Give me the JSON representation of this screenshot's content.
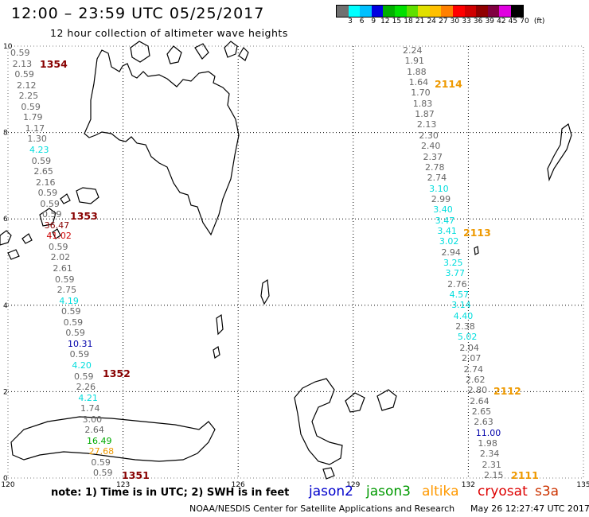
{
  "header": {
    "title": "12:00 – 23:59 UTC 05/25/2017",
    "subtitle": "12 hour collection of altimeter wave heights"
  },
  "colorbar": {
    "colors": [
      "#707070",
      "#00ffff",
      "#00c0ff",
      "#0000e0",
      "#00b000",
      "#00e000",
      "#60e000",
      "#e0e000",
      "#ffc000",
      "#ff8000",
      "#ff0000",
      "#d00000",
      "#900000",
      "#800040",
      "#e000e0",
      "#000000"
    ],
    "labels": [
      "3",
      "6",
      "9",
      "12",
      "15",
      "18",
      "21",
      "24",
      "27",
      "30",
      "33",
      "36",
      "39",
      "42",
      "45",
      "70",
      "(ft)"
    ]
  },
  "axes": {
    "x_ticks": [
      "120",
      "123",
      "126",
      "129",
      "132",
      "135"
    ],
    "y_ticks": [
      "0",
      "2",
      "4",
      "6",
      "8",
      "10"
    ]
  },
  "colors": {
    "gray": "#666666",
    "cyan": "#00dddd",
    "blue": "#0000aa",
    "green": "#00aa00",
    "orange": "#ee9900",
    "darkred": "#880000",
    "red": "#cc0000",
    "grid": "#000000"
  },
  "passes": [
    {
      "label": "1354",
      "color": "darkred"
    },
    {
      "label": "1353",
      "color": "darkred"
    },
    {
      "label": "1352",
      "color": "darkred"
    },
    {
      "label": "1351",
      "color": "darkred"
    },
    {
      "label": "2114",
      "color": "orange"
    },
    {
      "label": "2113",
      "color": "orange"
    },
    {
      "label": "2112",
      "color": "orange"
    },
    {
      "label": "2111",
      "color": "orange"
    }
  ],
  "track_west": [
    {
      "v": "0.59",
      "c": "gray"
    },
    {
      "v": "2.13",
      "c": "gray"
    },
    {
      "v": "0.59",
      "c": "gray"
    },
    {
      "v": "2.12",
      "c": "gray"
    },
    {
      "v": "2.25",
      "c": "gray"
    },
    {
      "v": "0.59",
      "c": "gray"
    },
    {
      "v": "1.79",
      "c": "gray"
    },
    {
      "v": "1.17",
      "c": "gray"
    },
    {
      "v": "1.30",
      "c": "gray"
    },
    {
      "v": "4.23",
      "c": "cyan"
    },
    {
      "v": "0.59",
      "c": "gray"
    },
    {
      "v": "2.65",
      "c": "gray"
    },
    {
      "v": "2.16",
      "c": "gray"
    },
    {
      "v": "0.59",
      "c": "gray"
    },
    {
      "v": "0.59",
      "c": "gray"
    },
    {
      "v": "0.59",
      "c": "gray"
    },
    {
      "v": "36.47",
      "c": "darkred"
    },
    {
      "v": "41.02",
      "c": "red"
    },
    {
      "v": "0.59",
      "c": "gray"
    },
    {
      "v": "2.02",
      "c": "gray"
    },
    {
      "v": "2.61",
      "c": "gray"
    },
    {
      "v": "0.59",
      "c": "gray"
    },
    {
      "v": "2.75",
      "c": "gray"
    },
    {
      "v": "4.19",
      "c": "cyan"
    },
    {
      "v": "0.59",
      "c": "gray"
    },
    {
      "v": "0.59",
      "c": "gray"
    },
    {
      "v": "0.59",
      "c": "gray"
    },
    {
      "v": "10.31",
      "c": "blue"
    },
    {
      "v": "0.59",
      "c": "gray"
    },
    {
      "v": "4.20",
      "c": "cyan"
    },
    {
      "v": "0.59",
      "c": "gray"
    },
    {
      "v": "2.26",
      "c": "gray"
    },
    {
      "v": "4.21",
      "c": "cyan"
    },
    {
      "v": "1.74",
      "c": "gray"
    },
    {
      "v": "3.00",
      "c": "gray"
    },
    {
      "v": "2.64",
      "c": "gray"
    },
    {
      "v": "16.49",
      "c": "green"
    },
    {
      "v": "27.68",
      "c": "orange"
    },
    {
      "v": "0.59",
      "c": "gray"
    },
    {
      "v": "0.59",
      "c": "gray"
    }
  ],
  "track_east": [
    {
      "v": "2.24",
      "c": "gray"
    },
    {
      "v": "1.91",
      "c": "gray"
    },
    {
      "v": "1.88",
      "c": "gray"
    },
    {
      "v": "1.64",
      "c": "gray"
    },
    {
      "v": "1.70",
      "c": "gray"
    },
    {
      "v": "1.83",
      "c": "gray"
    },
    {
      "v": "1.87",
      "c": "gray"
    },
    {
      "v": "2.13",
      "c": "gray"
    },
    {
      "v": "2.30",
      "c": "gray"
    },
    {
      "v": "2.40",
      "c": "gray"
    },
    {
      "v": "2.37",
      "c": "gray"
    },
    {
      "v": "2.78",
      "c": "gray"
    },
    {
      "v": "2.74",
      "c": "gray"
    },
    {
      "v": "3.10",
      "c": "cyan"
    },
    {
      "v": "2.99",
      "c": "gray"
    },
    {
      "v": "3.40",
      "c": "cyan"
    },
    {
      "v": "3.47",
      "c": "cyan"
    },
    {
      "v": "3.41",
      "c": "cyan"
    },
    {
      "v": "3.02",
      "c": "cyan"
    },
    {
      "v": "2.94",
      "c": "gray"
    },
    {
      "v": "3.25",
      "c": "cyan"
    },
    {
      "v": "3.77",
      "c": "cyan"
    },
    {
      "v": "2.76",
      "c": "gray"
    },
    {
      "v": "4.57",
      "c": "cyan"
    },
    {
      "v": "3.14",
      "c": "cyan"
    },
    {
      "v": "4.40",
      "c": "cyan"
    },
    {
      "v": "2.38",
      "c": "gray"
    },
    {
      "v": "5.02",
      "c": "cyan"
    },
    {
      "v": "2.04",
      "c": "gray"
    },
    {
      "v": "2.07",
      "c": "gray"
    },
    {
      "v": "2.74",
      "c": "gray"
    },
    {
      "v": "2.62",
      "c": "gray"
    },
    {
      "v": "2.80",
      "c": "gray"
    },
    {
      "v": "2.64",
      "c": "gray"
    },
    {
      "v": "2.65",
      "c": "gray"
    },
    {
      "v": "2.63",
      "c": "gray"
    },
    {
      "v": "11.00",
      "c": "blue"
    },
    {
      "v": "1.98",
      "c": "gray"
    },
    {
      "v": "2.34",
      "c": "gray"
    },
    {
      "v": "2.31",
      "c": "gray"
    },
    {
      "v": "2.15",
      "c": "gray"
    }
  ],
  "footer": {
    "note": "note: 1) Time is in UTC; 2) SWH is in feet",
    "legend": [
      {
        "label": "jason2",
        "color": "#0000cc"
      },
      {
        "label": "jason3",
        "color": "#009900"
      },
      {
        "label": "altika",
        "color": "#ff9900"
      },
      {
        "label": "cryosat",
        "color": "#dd0000"
      },
      {
        "label": "s3a",
        "color": "#cc3300"
      }
    ],
    "credit": "NOAA/NESDIS Center for Satellite Applications and Research",
    "timestamp": "May 26 12:27:47 UTC 2017"
  }
}
